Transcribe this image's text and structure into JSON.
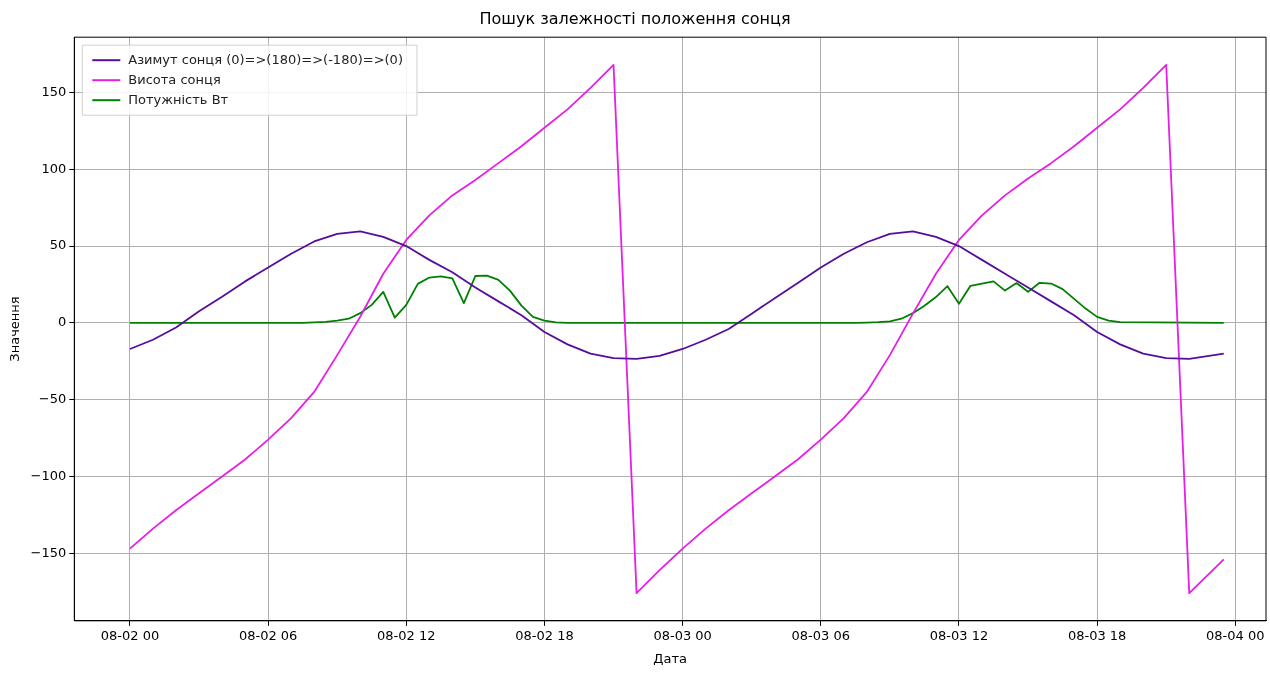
{
  "chart_data": {
    "type": "line",
    "title": "Пошук залежності положення сонця",
    "xlabel": "Дата",
    "ylabel": "Значення",
    "xlim": [
      "--08-01T21:35",
      "--08-04T01:20"
    ],
    "xticks": [
      {
        "value": "--08-02T00:00",
        "label": "08-02 00"
      },
      {
        "value": "--08-02T06:00",
        "label": "08-02 06"
      },
      {
        "value": "--08-02T12:00",
        "label": "08-02 12"
      },
      {
        "value": "--08-02T18:00",
        "label": "08-02 18"
      },
      {
        "value": "--08-03T00:00",
        "label": "08-03 00"
      },
      {
        "value": "--08-03T06:00",
        "label": "08-03 06"
      },
      {
        "value": "--08-03T12:00",
        "label": "08-03 12"
      },
      {
        "value": "--08-03T18:00",
        "label": "08-03 18"
      },
      {
        "value": "--08-04T00:00",
        "label": "08-04 00"
      }
    ],
    "ylim": [
      -194,
      186
    ],
    "yticks": [
      -150,
      -100,
      -50,
      0,
      50,
      100,
      150
    ],
    "grid": true,
    "legend": "top left",
    "marker": "none",
    "line_style": "solid",
    "series": [
      {
        "name": "Азимут сонця (0)=>(180)=>(-180)=>(0)",
        "color": "#560e9a",
        "x": [
          "--08-02T00:00",
          "--08-02T01:00",
          "--08-02T02:00",
          "--08-02T03:00",
          "--08-02T04:00",
          "--08-02T05:00",
          "--08-02T06:00",
          "--08-02T07:00",
          "--08-02T08:00",
          "--08-02T09:00",
          "--08-02T10:00",
          "--08-02T11:00",
          "--08-02T12:00",
          "--08-02T13:00",
          "--08-02T14:00",
          "--08-02T15:00",
          "--08-02T16:00",
          "--08-02T17:00",
          "--08-02T18:00",
          "--08-02T19:00",
          "--08-02T20:00",
          "--08-02T21:00",
          "--08-02T22:00",
          "--08-02T23:00",
          "--08-03T00:00",
          "--08-03T01:00",
          "--08-03T02:00",
          "--08-03T03:00",
          "--08-03T04:00",
          "--08-03T05:00",
          "--08-03T06:00",
          "--08-03T07:00",
          "--08-03T08:00",
          "--08-03T09:00",
          "--08-03T10:00",
          "--08-03T11:00",
          "--08-03T12:00",
          "--08-03T13:00",
          "--08-03T14:00",
          "--08-03T15:00",
          "--08-03T16:00",
          "--08-03T17:00",
          "--08-03T18:00",
          "--08-03T19:00",
          "--08-03T20:00",
          "--08-03T21:00",
          "--08-03T22:00",
          "--08-03T23:30"
        ],
        "values": [
          -17,
          -11,
          -3,
          7.5,
          17,
          27,
          36,
          45,
          53,
          58,
          59.5,
          56,
          50,
          41,
          33,
          23,
          14,
          5,
          -6,
          -14,
          -20,
          -23,
          -23.5,
          -21.5,
          -17,
          -11,
          -4,
          6,
          16,
          26,
          36,
          45,
          52.5,
          58,
          59.5,
          56,
          50,
          41,
          32,
          23,
          14,
          5,
          -6,
          -14,
          -20,
          -23,
          -23.5,
          -20
        ]
      },
      {
        "name": "Висота сонця",
        "color": "#e61ee6",
        "x": [
          "--08-02T00:00",
          "--08-02T01:00",
          "--08-02T02:00",
          "--08-02T03:00",
          "--08-02T04:00",
          "--08-02T05:00",
          "--08-02T06:00",
          "--08-02T07:00",
          "--08-02T08:00",
          "--08-02T09:00",
          "--08-02T10:00",
          "--08-02T11:00",
          "--08-02T12:00",
          "--08-02T13:00",
          "--08-02T14:00",
          "--08-02T15:00",
          "--08-02T16:00",
          "--08-02T17:00",
          "--08-02T18:00",
          "--08-02T19:00",
          "--08-02T20:00",
          "--08-02T21:00",
          "--08-02T22:00",
          "--08-02T23:00",
          "--08-03T00:00",
          "--08-03T01:00",
          "--08-03T02:00",
          "--08-03T03:00",
          "--08-03T04:00",
          "--08-03T05:00",
          "--08-03T06:00",
          "--08-03T07:00",
          "--08-03T08:00",
          "--08-03T09:00",
          "--08-03T10:00",
          "--08-03T11:00",
          "--08-03T12:00",
          "--08-03T13:00",
          "--08-03T14:00",
          "--08-03T15:00",
          "--08-03T16:00",
          "--08-03T17:00",
          "--08-03T18:00",
          "--08-03T19:00",
          "--08-03T20:00",
          "--08-03T21:00",
          "--08-03T22:00",
          "--08-03T23:30"
        ],
        "values": [
          -147,
          -134,
          -122,
          -111,
          -100,
          -89,
          -76,
          -62,
          -45,
          -21,
          4,
          32,
          54,
          70,
          83,
          93,
          104,
          115,
          127,
          139,
          153,
          168,
          -176,
          -161,
          -147,
          -134,
          -122,
          -111,
          -100,
          -89,
          -76,
          -62,
          -45,
          -21,
          6,
          32,
          54,
          70,
          83,
          94,
          104,
          115,
          127,
          139,
          153,
          168,
          -176,
          -154
        ]
      },
      {
        "name": "Потужність Вт",
        "color": "#008000",
        "x": [
          "--08-02T00:00",
          "--08-02T07:30",
          "--08-02T08:00",
          "--08-02T08:30",
          "--08-02T09:00",
          "--08-02T09:30",
          "--08-02T10:00",
          "--08-02T10:30",
          "--08-02T11:00",
          "--08-02T11:30",
          "--08-02T12:00",
          "--08-02T12:30",
          "--08-02T13:00",
          "--08-02T13:30",
          "--08-02T14:00",
          "--08-02T14:30",
          "--08-02T15:00",
          "--08-02T15:30",
          "--08-02T16:00",
          "--08-02T16:30",
          "--08-02T17:00",
          "--08-02T17:30",
          "--08-02T18:00",
          "--08-02T18:30",
          "--08-02T19:00",
          "--08-03T07:30",
          "--08-03T08:00",
          "--08-03T08:30",
          "--08-03T09:00",
          "--08-03T09:30",
          "--08-03T10:00",
          "--08-03T10:30",
          "--08-03T11:00",
          "--08-03T11:30",
          "--08-03T12:00",
          "--08-03T12:30",
          "--08-03T13:00",
          "--08-03T13:30",
          "--08-03T14:00",
          "--08-03T14:30",
          "--08-03T15:00",
          "--08-03T15:30",
          "--08-03T16:00",
          "--08-03T16:30",
          "--08-03T17:00",
          "--08-03T17:30",
          "--08-03T18:00",
          "--08-03T18:30",
          "--08-03T19:00",
          "--08-03T23:30"
        ],
        "values": [
          0,
          0,
          0.3,
          0.6,
          1.5,
          2.7,
          6.3,
          11.7,
          20.2,
          3.4,
          11.7,
          25.4,
          29.5,
          30.2,
          29,
          12.9,
          30.5,
          30.7,
          28,
          21,
          11.2,
          3.9,
          1.5,
          0.3,
          0,
          0,
          0.2,
          0.5,
          1,
          2.7,
          6.3,
          11.2,
          16.8,
          23.9,
          12.4,
          24.1,
          25.6,
          27,
          21,
          25.9,
          20.2,
          26.1,
          25.6,
          22,
          15.6,
          9.3,
          3.9,
          1.5,
          0.5,
          0
        ]
      }
    ]
  }
}
